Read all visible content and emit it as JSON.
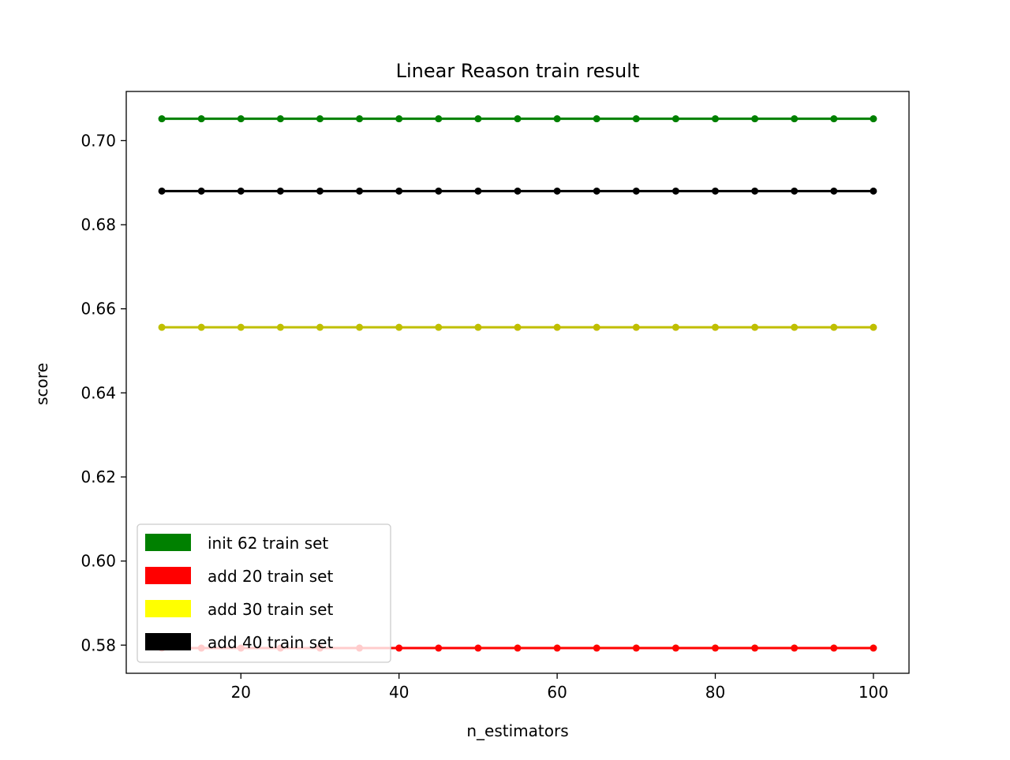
{
  "chart_data": {
    "type": "line",
    "title": "Linear Reason train result",
    "xlabel": "n_estimators",
    "ylabel": "score",
    "xlim": [
      5.5,
      104.5
    ],
    "ylim": [
      0.5733,
      0.7117
    ],
    "x_ticks": [
      20,
      40,
      60,
      80,
      100
    ],
    "x_tick_labels": [
      "20",
      "40",
      "60",
      "80",
      "100"
    ],
    "y_ticks": [
      0.58,
      0.6,
      0.62,
      0.64,
      0.66,
      0.68,
      0.7
    ],
    "y_tick_labels": [
      "0.58",
      "0.60",
      "0.62",
      "0.64",
      "0.66",
      "0.68",
      "0.70"
    ],
    "grid": false,
    "legend_position": "lower-left",
    "x": [
      10,
      15,
      20,
      25,
      30,
      35,
      40,
      45,
      50,
      55,
      60,
      65,
      70,
      75,
      80,
      85,
      90,
      95,
      100
    ],
    "series": [
      {
        "name": "init 62 train set",
        "color": "#008000",
        "legend_color": "#008000",
        "marker": "point",
        "values": [
          0.7052,
          0.7052,
          0.7052,
          0.7052,
          0.7052,
          0.7052,
          0.7052,
          0.7052,
          0.7052,
          0.7052,
          0.7052,
          0.7052,
          0.7052,
          0.7052,
          0.7052,
          0.7052,
          0.7052,
          0.7052,
          0.7052
        ]
      },
      {
        "name": "add 20 train set",
        "color": "#ff0000",
        "legend_color": "#ff0000",
        "marker": "point",
        "values": [
          0.5793,
          0.5793,
          0.5793,
          0.5793,
          0.5793,
          0.5793,
          0.5793,
          0.5793,
          0.5793,
          0.5793,
          0.5793,
          0.5793,
          0.5793,
          0.5793,
          0.5793,
          0.5793,
          0.5793,
          0.5793,
          0.5793
        ]
      },
      {
        "name": "add 30 train set",
        "color": "#bfbf00",
        "legend_color": "#ffff00",
        "marker": "point",
        "values": [
          0.6556,
          0.6556,
          0.6556,
          0.6556,
          0.6556,
          0.6556,
          0.6556,
          0.6556,
          0.6556,
          0.6556,
          0.6556,
          0.6556,
          0.6556,
          0.6556,
          0.6556,
          0.6556,
          0.6556,
          0.6556,
          0.6556
        ]
      },
      {
        "name": "add 40 train set",
        "color": "#000000",
        "legend_color": "#000000",
        "marker": "point",
        "values": [
          0.688,
          0.688,
          0.688,
          0.688,
          0.688,
          0.688,
          0.688,
          0.688,
          0.688,
          0.688,
          0.688,
          0.688,
          0.688,
          0.688,
          0.688,
          0.688,
          0.688,
          0.688,
          0.688
        ]
      }
    ]
  }
}
